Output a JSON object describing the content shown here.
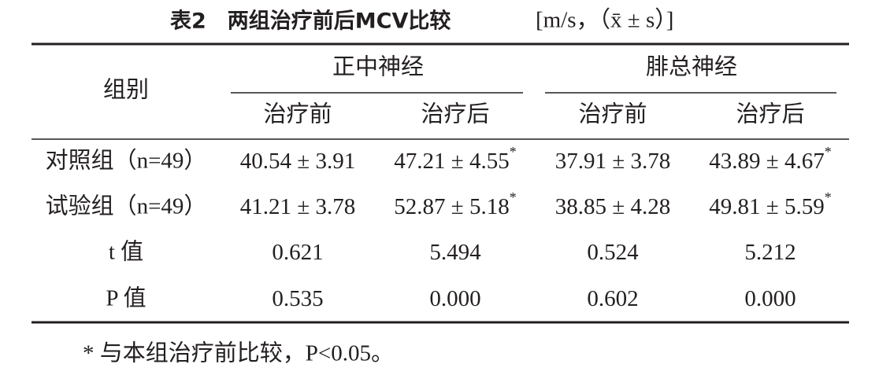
{
  "header": {
    "title": "表2　两组治疗前后MCV比较",
    "unit": "[m/s，（x̄ ± s）]"
  },
  "table": {
    "corner": "组别",
    "groups": [
      "正中神经",
      "腓总神经"
    ],
    "subheaders": [
      "治疗前",
      "治疗后",
      "治疗前",
      "治疗后"
    ],
    "rows": [
      {
        "label": "对照组（n=49）",
        "cells": [
          {
            "text": "40.54 ± 3.91"
          },
          {
            "text": "47.21 ± 4.55",
            "sup": "*"
          },
          {
            "text": "37.91 ± 3.78"
          },
          {
            "text": "43.89 ± 4.67",
            "sup": "*"
          }
        ]
      },
      {
        "label": "试验组（n=49）",
        "cells": [
          {
            "text": "41.21 ± 3.78"
          },
          {
            "text": "52.87 ± 5.18",
            "sup": "*"
          },
          {
            "text": "38.85 ± 4.28"
          },
          {
            "text": "49.81 ± 5.59",
            "sup": "*"
          }
        ]
      },
      {
        "label": "t 值",
        "cells": [
          {
            "text": "0.621"
          },
          {
            "text": "5.494"
          },
          {
            "text": "0.524"
          },
          {
            "text": "5.212"
          }
        ]
      },
      {
        "label": "P 值",
        "cells": [
          {
            "text": "0.535"
          },
          {
            "text": "0.000"
          },
          {
            "text": "0.602"
          },
          {
            "text": "0.000"
          }
        ]
      }
    ]
  },
  "footnote": "* 与本组治疗前比较，P<0.05。"
}
